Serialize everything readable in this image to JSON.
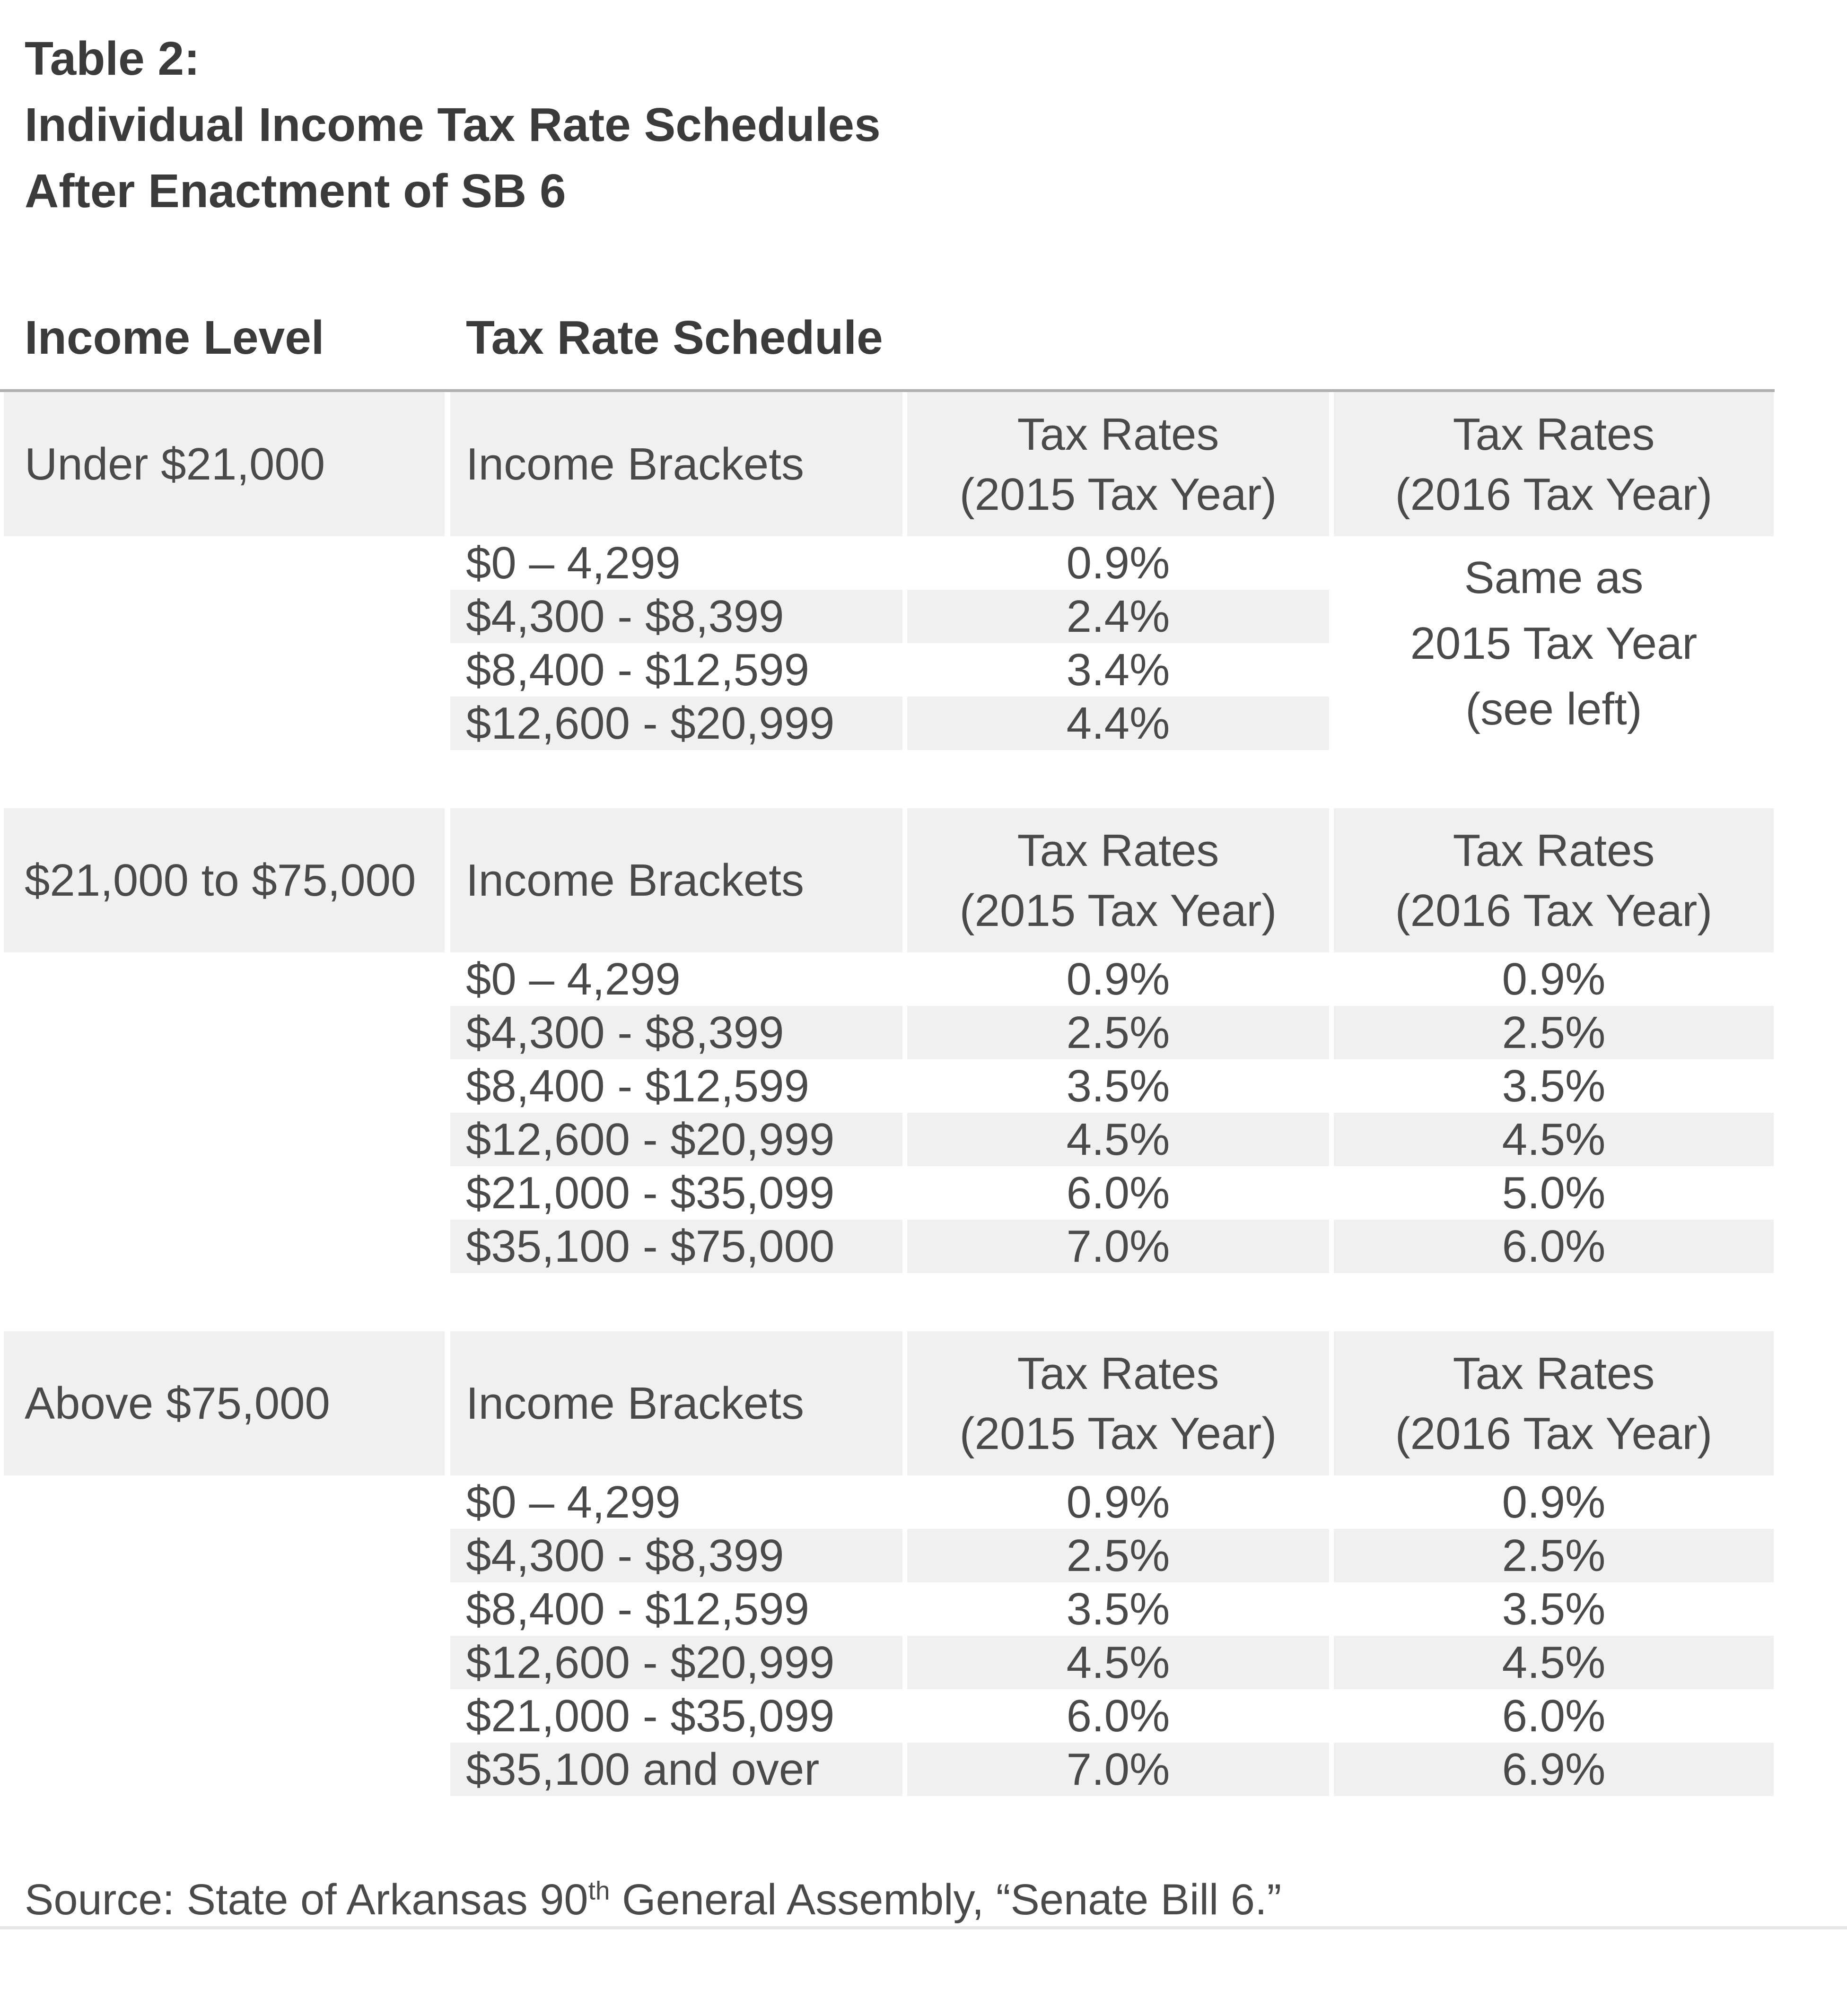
{
  "title": {
    "lines": [
      "Table 2:",
      "Individual Income Tax Rate Schedules",
      "After Enactment of SB 6"
    ]
  },
  "columns": {
    "income_level": "Income Level",
    "tax_rate_schedule": "Tax Rate Schedule"
  },
  "sections": [
    {
      "income_level": "Under $21,000",
      "brackets_label": "Income Brackets",
      "rates_2015_header": {
        "line1": "Tax Rates",
        "line2": "(2015 Tax Year)"
      },
      "rates_2016_header": {
        "line1": "Tax Rates",
        "line2": "(2016 Tax Year)"
      },
      "rates_2016_note": {
        "line1": "Same as",
        "line2": "2015 Tax Year",
        "line3": "(see left)"
      },
      "rows": [
        {
          "bracket": "$0 – 4,299",
          "rate_2015": "0.9%"
        },
        {
          "bracket": "$4,300 - $8,399",
          "rate_2015": "2.4%"
        },
        {
          "bracket": "$8,400 - $12,599",
          "rate_2015": "3.4%"
        },
        {
          "bracket": "$12,600 - $20,999",
          "rate_2015": "4.4%"
        }
      ]
    },
    {
      "income_level": "$21,000 to $75,000",
      "brackets_label": "Income Brackets",
      "rates_2015_header": {
        "line1": "Tax Rates",
        "line2": "(2015 Tax Year)"
      },
      "rates_2016_header": {
        "line1": "Tax Rates",
        "line2": "(2016 Tax Year)"
      },
      "rows": [
        {
          "bracket": "$0 – 4,299",
          "rate_2015": "0.9%",
          "rate_2016": "0.9%"
        },
        {
          "bracket": "$4,300 - $8,399",
          "rate_2015": "2.5%",
          "rate_2016": "2.5%"
        },
        {
          "bracket": "$8,400 - $12,599",
          "rate_2015": "3.5%",
          "rate_2016": "3.5%"
        },
        {
          "bracket": "$12,600 - $20,999",
          "rate_2015": "4.5%",
          "rate_2016": "4.5%"
        },
        {
          "bracket": "$21,000 - $35,099",
          "rate_2015": "6.0%",
          "rate_2016": "5.0%"
        },
        {
          "bracket": "$35,100 - $75,000",
          "rate_2015": "7.0%",
          "rate_2016": "6.0%"
        }
      ]
    },
    {
      "income_level": "Above $75,000",
      "brackets_label": "Income Brackets",
      "rates_2015_header": {
        "line1": "Tax Rates",
        "line2": "(2015 Tax Year)"
      },
      "rates_2016_header": {
        "line1": "Tax Rates",
        "line2": "(2016 Tax Year)"
      },
      "rows": [
        {
          "bracket": "$0 – 4,299",
          "rate_2015": "0.9%",
          "rate_2016": "0.9%"
        },
        {
          "bracket": "$4,300 - $8,399",
          "rate_2015": "2.5%",
          "rate_2016": "2.5%"
        },
        {
          "bracket": "$8,400 - $12,599",
          "rate_2015": "3.5%",
          "rate_2016": "3.5%"
        },
        {
          "bracket": "$12,600 - $20,999",
          "rate_2015": "4.5%",
          "rate_2016": "4.5%"
        },
        {
          "bracket": "$21,000 - $35,099",
          "rate_2015": "6.0%",
          "rate_2016": "6.0%"
        },
        {
          "bracket": "$35,100 and over",
          "rate_2015": "7.0%",
          "rate_2016": "6.9%"
        }
      ]
    }
  ],
  "source": {
    "prefix": "Source: State of Arkansas 90",
    "ordinal_suffix": "th",
    "suffix": " General Assembly, “Senate Bill 6.”"
  },
  "colors": {
    "stripe_gray": "#f1f0f0",
    "top_divider_gray": "#b0b0b0",
    "bottom_rule_gray": "#e7e7e7",
    "heading_text": "#3b3b3b",
    "body_text": "#4a4a4a"
  }
}
